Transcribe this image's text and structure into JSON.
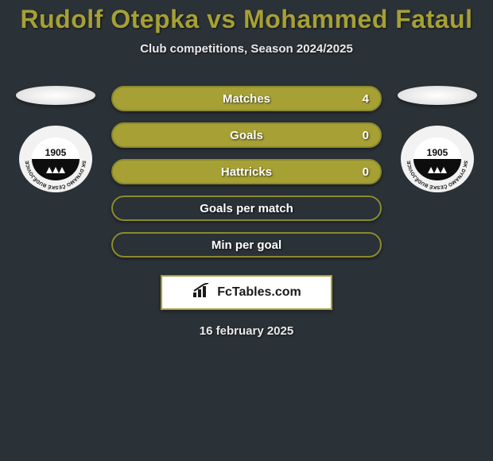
{
  "title": "Rudolf Otepka vs Mohammed Fataul",
  "subtitle": "Club competitions, Season 2024/2025",
  "date": "16 february 2025",
  "brand": "FcTables.com",
  "colors": {
    "background": "#2a3137",
    "accent": "#a6a035",
    "bar_border": "#8a8a2e",
    "bar_fill_with_value": "#a6a035",
    "bar_fill_empty": "#2a3137",
    "text_light": "#ffffff"
  },
  "club_badge": {
    "year": "1905",
    "ring_text": "SK DYNAMO ČESKÉ BUDĚJOVICE",
    "outer": "#f2f2f2",
    "inner_top": "#ffffff",
    "inner_bottom": "#0d0d0d",
    "text_color": "#0d0d0d"
  },
  "stats": [
    {
      "label": "Matches",
      "value_right": "4",
      "filled": true
    },
    {
      "label": "Goals",
      "value_right": "0",
      "filled": true
    },
    {
      "label": "Hattricks",
      "value_right": "0",
      "filled": true
    },
    {
      "label": "Goals per match",
      "value_right": "",
      "filled": false
    },
    {
      "label": "Min per goal",
      "value_right": "",
      "filled": false
    }
  ]
}
